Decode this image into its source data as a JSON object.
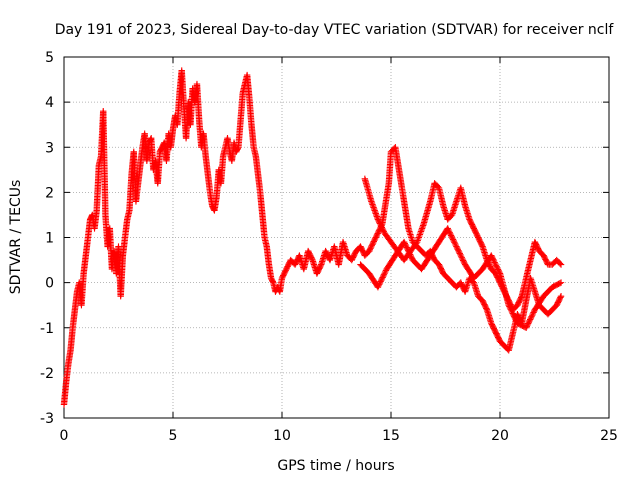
{
  "chart_data": {
    "type": "scatter",
    "title": "Day 191 of 2023, Sidereal Day-to-day VTEC variation (SDTVAR) for receiver nclf",
    "xlabel": "GPS time / hours",
    "ylabel": "SDTVAR / TECUs",
    "xlim": [
      0,
      25
    ],
    "ylim": [
      -3,
      5
    ],
    "xticks": [
      0,
      5,
      10,
      15,
      20,
      25
    ],
    "yticks": [
      -3,
      -2,
      -1,
      0,
      1,
      2,
      3,
      4,
      5
    ],
    "grid": true,
    "series_color": "#ff0000",
    "marker": "+",
    "series": [
      {
        "name": "SDTVAR",
        "traces": [
          {
            "x": [
              0,
              0.1,
              0.2,
              0.3,
              0.4,
              0.5,
              0.6,
              0.7,
              0.8,
              0.9,
              1.0,
              1.1,
              1.2,
              1.3,
              1.4,
              1.5,
              1.6,
              1.7,
              1.8,
              1.9,
              2.0,
              2.1,
              2.2,
              2.3,
              2.4,
              2.5,
              2.6,
              2.7,
              2.8,
              2.9,
              3.0,
              3.1,
              3.2,
              3.3,
              3.4,
              3.5,
              3.6,
              3.7,
              3.8,
              3.9,
              4.0,
              4.1,
              4.2,
              4.3,
              4.4,
              4.5,
              4.6,
              4.7,
              4.8,
              4.9,
              5.0,
              5.1,
              5.2,
              5.3,
              5.4,
              5.5,
              5.6,
              5.7,
              5.8,
              5.9,
              6.0,
              6.1,
              6.2,
              6.3,
              6.4,
              6.5,
              6.6,
              6.7,
              6.8,
              6.9,
              7.0,
              7.1,
              7.2,
              7.3,
              7.4,
              7.5,
              7.6,
              7.7,
              7.8,
              7.9,
              8.0,
              8.1,
              8.2,
              8.3,
              8.4,
              8.5,
              8.6,
              8.7,
              8.8,
              8.9,
              9.0,
              9.1,
              9.2,
              9.3,
              9.4,
              9.5,
              9.6,
              9.7,
              9.8,
              9.9,
              10.0,
              10.2,
              10.4,
              10.6,
              10.8,
              11.0,
              11.2,
              11.4,
              11.6,
              11.8,
              12.0,
              12.2,
              12.4,
              12.6,
              12.8,
              13.0,
              13.2,
              13.4,
              13.6,
              13.8,
              14.0
            ],
            "y": [
              -2.7,
              -2.2,
              -1.8,
              -1.5,
              -1.0,
              -0.6,
              -0.2,
              0.0,
              -0.5,
              0.2,
              0.6,
              1.0,
              1.4,
              1.5,
              1.2,
              1.6,
              2.6,
              2.8,
              3.8,
              1.5,
              0.8,
              1.2,
              0.3,
              0.7,
              0.2,
              0.8,
              -0.3,
              0.6,
              1.0,
              1.4,
              1.6,
              2.4,
              2.9,
              1.8,
              2.2,
              2.6,
              3.0,
              3.3,
              2.7,
              3.1,
              3.2,
              2.5,
              2.7,
              2.2,
              2.9,
              3.0,
              3.1,
              2.7,
              3.3,
              3.0,
              3.4,
              3.7,
              3.5,
              4.2,
              4.7,
              3.9,
              3.2,
              4.0,
              3.5,
              4.3,
              4.0,
              4.4,
              3.6,
              3.0,
              3.3,
              2.8,
              2.4,
              2.0,
              1.7,
              1.6,
              1.9,
              2.5,
              2.2,
              2.8,
              3.0,
              3.2,
              2.9,
              2.7,
              3.1,
              2.9,
              3.0,
              3.6,
              4.2,
              4.4,
              4.6,
              4.1,
              3.5,
              3.0,
              2.8,
              2.4,
              2.0,
              1.5,
              1.0,
              0.8,
              0.4,
              0.1,
              0.0,
              -0.2,
              -0.1,
              -0.2,
              0.1,
              0.3,
              0.5,
              0.4,
              0.6,
              0.3,
              0.7,
              0.5,
              0.2,
              0.4,
              0.7,
              0.5,
              0.8,
              0.4,
              0.9,
              0.6,
              0.5,
              0.7,
              0.8,
              0.6,
              0.7
            ]
          },
          {
            "x": [
              14.0,
              14.3,
              14.6,
              14.9,
              15.0,
              15.2,
              15.4,
              15.6,
              15.8,
              16.0,
              16.2,
              16.4,
              16.6,
              16.8,
              17.0,
              17.2,
              17.4,
              17.6,
              17.8,
              18.0,
              18.2,
              18.4,
              18.6,
              18.8,
              19.0,
              19.2,
              19.4,
              19.6,
              19.8,
              20.0,
              20.2,
              20.4,
              20.6,
              20.8,
              21.0,
              21.2,
              21.4,
              21.6,
              21.8,
              22.0,
              22.2,
              22.4,
              22.6,
              22.8
            ],
            "y": [
              0.7,
              1.0,
              1.3,
              2.2,
              2.9,
              3.0,
              2.4,
              1.8,
              1.2,
              0.9,
              0.8,
              0.7,
              0.6,
              0.7,
              0.5,
              0.4,
              0.2,
              0.1,
              0.0,
              -0.1,
              0.0,
              -0.2,
              0.1,
              0.0,
              -0.3,
              -0.4,
              -0.6,
              -0.9,
              -1.1,
              -1.3,
              -1.4,
              -1.5,
              -1.1,
              -0.7,
              -0.9,
              -0.4,
              0.1,
              -0.2,
              -0.5,
              -0.6,
              -0.7,
              -0.6,
              -0.5,
              -0.3
            ]
          },
          {
            "x": [
              13.8,
              14.1,
              14.4,
              14.7,
              15.0,
              15.3,
              15.6,
              15.9,
              16.2,
              16.5,
              16.8,
              17.0,
              17.2,
              17.4,
              17.6,
              17.8,
              18.0,
              18.2,
              18.4,
              18.6,
              18.8,
              19.0,
              19.2,
              19.4,
              19.6,
              19.8,
              20.0,
              20.2,
              20.4,
              20.6,
              20.8,
              21.0,
              21.2,
              21.4,
              21.6,
              21.8,
              22.0,
              22.2,
              22.4,
              22.6,
              22.8
            ],
            "y": [
              2.3,
              1.8,
              1.4,
              1.1,
              0.9,
              0.7,
              0.5,
              0.7,
              0.9,
              1.3,
              1.8,
              2.2,
              2.1,
              1.7,
              1.4,
              1.5,
              1.8,
              2.1,
              1.7,
              1.4,
              1.2,
              1.0,
              0.8,
              0.5,
              0.3,
              0.2,
              0.0,
              -0.2,
              -0.4,
              -0.6,
              -0.5,
              -0.3,
              0.1,
              0.5,
              0.9,
              0.7,
              0.6,
              0.4,
              0.4,
              0.5,
              0.4
            ]
          },
          {
            "x": [
              13.6,
              14.0,
              14.4,
              14.8,
              15.2,
              15.6,
              16.0,
              16.4,
              16.8,
              17.2,
              17.6,
              18.0,
              18.4,
              18.8,
              19.2,
              19.6,
              20.0,
              20.4,
              20.8,
              21.2,
              21.6,
              22.0,
              22.4,
              22.8
            ],
            "y": [
              0.4,
              0.2,
              -0.1,
              0.3,
              0.6,
              0.9,
              0.5,
              0.3,
              0.6,
              0.9,
              1.2,
              0.8,
              0.4,
              0.1,
              0.3,
              0.6,
              0.2,
              -0.5,
              -0.9,
              -1.0,
              -0.6,
              -0.3,
              -0.1,
              0.0
            ]
          }
        ]
      }
    ]
  }
}
